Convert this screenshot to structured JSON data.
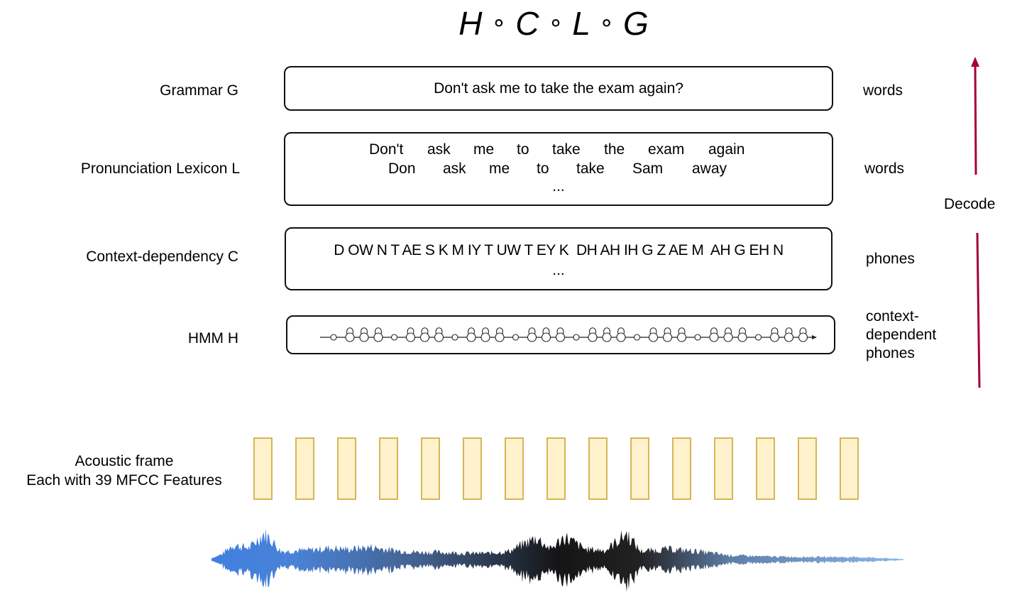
{
  "title": {
    "h": "H",
    "c": "C",
    "l": "L",
    "g": "G",
    "op": "∘"
  },
  "layers": {
    "grammar": {
      "label": "Grammar G",
      "text": "Don't ask me to take the exam again?",
      "unit": "words"
    },
    "lexicon": {
      "label": "Pronunciation Lexicon L",
      "line1": [
        "Don't",
        "ask",
        "me",
        "to",
        "take",
        "the",
        "exam",
        "again"
      ],
      "line2": [
        "Don",
        "ask",
        "me",
        "to",
        "take",
        "Sam",
        "away"
      ],
      "ellipsis": "...",
      "unit": "words"
    },
    "context": {
      "label": "Context-dependency C",
      "phones": "D OW N T AE S K M IY T UW T EY K  DH AH IH G Z AE M  AH G EH N",
      "ellipsis": "...",
      "unit": "phones"
    },
    "hmm": {
      "label": "HMM H",
      "unit_lines": [
        "context-",
        "dependent",
        "phones"
      ]
    }
  },
  "acoustic": {
    "line1": "Acoustic frame",
    "line2": "Each with 39 MFCC Features",
    "frame_count": 15
  },
  "decode": {
    "label": "Decode",
    "arrow_color": "#a50034"
  }
}
